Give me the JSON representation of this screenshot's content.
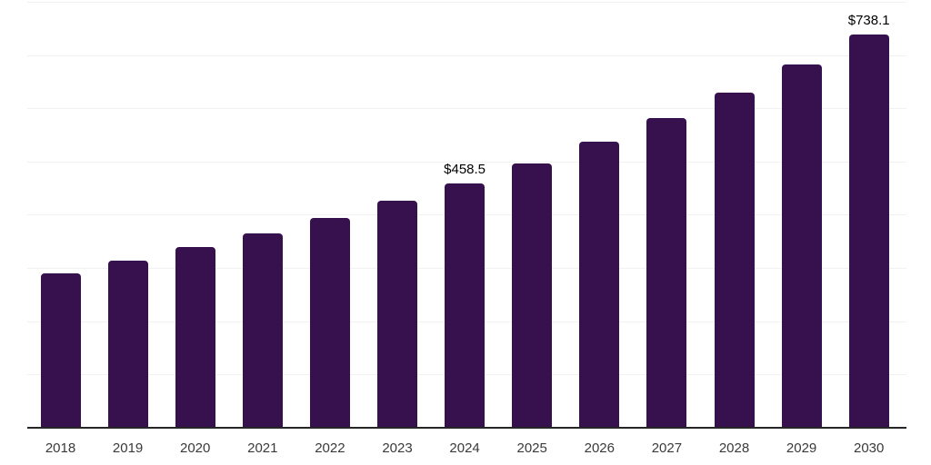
{
  "chart_data": {
    "type": "bar",
    "title": "",
    "xlabel": "",
    "ylabel": "",
    "categories": [
      "2018",
      "2019",
      "2020",
      "2021",
      "2022",
      "2023",
      "2024",
      "2025",
      "2026",
      "2027",
      "2028",
      "2029",
      "2030"
    ],
    "values": [
      290.1,
      313.6,
      339.5,
      364.8,
      393.8,
      426.2,
      458.5,
      496.4,
      537.4,
      581.7,
      629.8,
      681.8,
      738.1
    ],
    "data_labels": [
      {
        "category": "2024",
        "text": "$458.5"
      },
      {
        "category": "2030",
        "text": "$738.1"
      }
    ],
    "ylim": [
      0,
      800
    ],
    "grid_step": 100,
    "grid": true,
    "y_tick_labels_visible": false,
    "legend": "none",
    "colors": {
      "bar": "#36114E",
      "grid": "#f1f1f3",
      "axis": "#262626",
      "tick_label": "#3a3a3a",
      "data_label": "#000000",
      "background": "#ffffff"
    }
  }
}
